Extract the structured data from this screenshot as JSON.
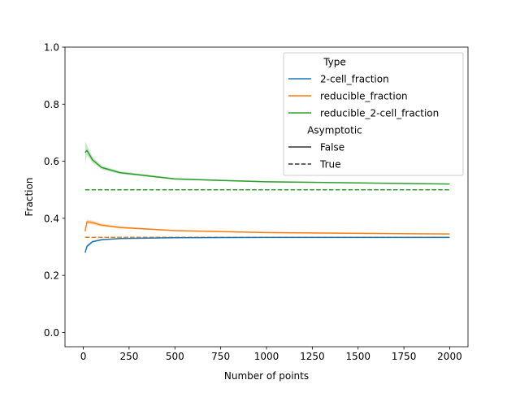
{
  "chart_data": {
    "type": "line",
    "xlabel": "Number of points",
    "ylabel": "Fraction",
    "xlim": [
      -100,
      2100
    ],
    "ylim": [
      -0.05,
      1.0
    ],
    "xticks": [
      0,
      250,
      500,
      750,
      1000,
      1250,
      1500,
      1750,
      2000
    ],
    "yticks": [
      0.0,
      0.2,
      0.4,
      0.6,
      0.8,
      1.0
    ],
    "xtick_labels": [
      "0",
      "250",
      "500",
      "750",
      "1000",
      "1250",
      "1500",
      "1750",
      "2000"
    ],
    "ytick_labels": [
      "0.0",
      "0.2",
      "0.4",
      "0.6",
      "0.8",
      "1.0"
    ],
    "grid": false,
    "legend_placement": "top-right",
    "legend": {
      "hue_title": "Type",
      "style_title": "Asymptotic",
      "style_entries": [
        {
          "label": "False",
          "dash": "solid"
        },
        {
          "label": "True",
          "dash": "dashed"
        }
      ]
    },
    "series": [
      {
        "name": "2-cell_fraction",
        "color": "#1f77b4",
        "x": [
          10,
          20,
          50,
          100,
          200,
          500,
          1000,
          2000
        ],
        "y": [
          0.28,
          0.302,
          0.318,
          0.325,
          0.329,
          0.332,
          0.333,
          0.333
        ],
        "ci_low": [
          0.272,
          0.296,
          0.314,
          0.322,
          0.327,
          0.331,
          0.332,
          0.333
        ],
        "ci_high": [
          0.288,
          0.308,
          0.322,
          0.328,
          0.331,
          0.333,
          0.334,
          0.334
        ],
        "asymptote": 0.3333
      },
      {
        "name": "reducible_fraction",
        "color": "#ff7f0e",
        "x": [
          10,
          20,
          50,
          100,
          200,
          500,
          1000,
          2000
        ],
        "y": [
          0.355,
          0.388,
          0.385,
          0.376,
          0.368,
          0.357,
          0.35,
          0.345
        ],
        "ci_low": [
          0.345,
          0.38,
          0.378,
          0.371,
          0.364,
          0.355,
          0.348,
          0.344
        ],
        "ci_high": [
          0.365,
          0.396,
          0.392,
          0.381,
          0.372,
          0.359,
          0.352,
          0.346
        ],
        "asymptote": 0.3333
      },
      {
        "name": "reducible_2-cell_fraction",
        "color": "#2ca02c",
        "x": [
          10,
          20,
          50,
          100,
          200,
          500,
          1000,
          2000
        ],
        "y": [
          0.63,
          0.638,
          0.605,
          0.578,
          0.56,
          0.538,
          0.528,
          0.52
        ],
        "ci_low": [
          0.59,
          0.62,
          0.595,
          0.571,
          0.555,
          0.535,
          0.526,
          0.519
        ],
        "ci_high": [
          0.67,
          0.656,
          0.615,
          0.585,
          0.565,
          0.541,
          0.53,
          0.521
        ],
        "asymptote": 0.5
      }
    ]
  }
}
